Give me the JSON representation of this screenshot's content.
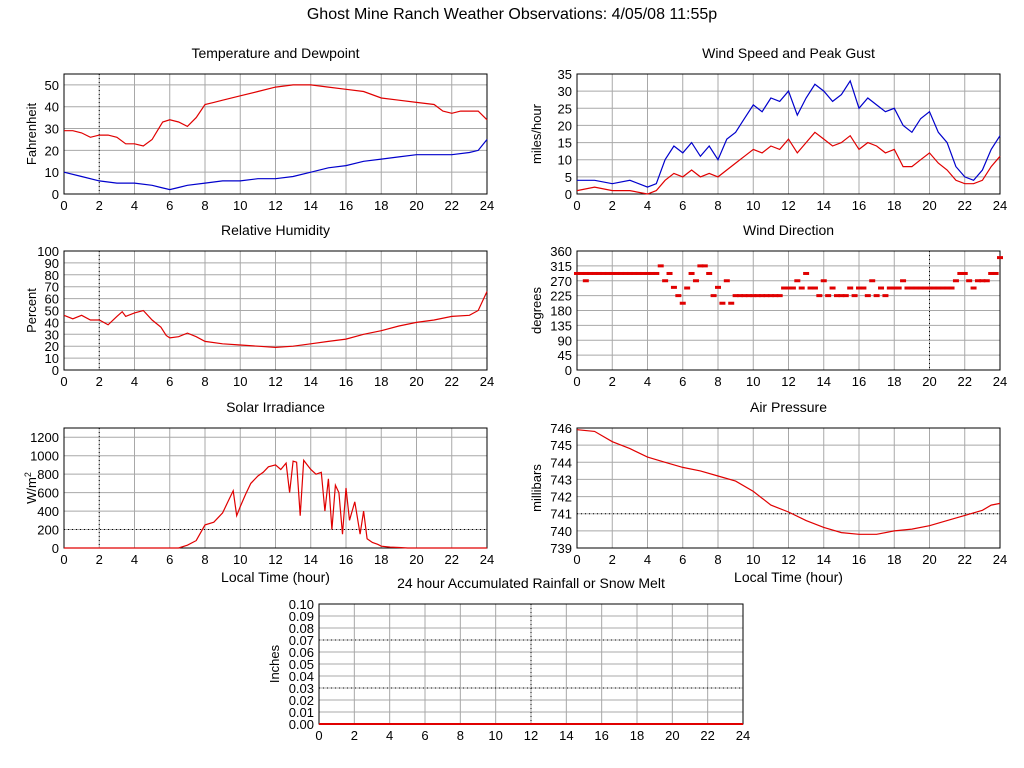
{
  "page": {
    "title": "Ghost Mine Ranch Weather Observations: 4/05/08 11:55p"
  },
  "colors": {
    "red": "#e00000",
    "blue": "#0000cc",
    "grid": "#a8a8a8",
    "axis": "#000000"
  },
  "chart_data": [
    {
      "id": "temp",
      "type": "line",
      "title": "Temperature and Dewpoint",
      "ylabel": "Fahrenheit",
      "xlabel": "",
      "xlim": [
        0,
        24
      ],
      "ylim": [
        0,
        55
      ],
      "xticks": [
        0,
        2,
        4,
        6,
        8,
        10,
        12,
        14,
        16,
        18,
        20,
        22,
        24
      ],
      "yticks": [
        0,
        10,
        20,
        30,
        40,
        50
      ],
      "grid": true,
      "series": [
        {
          "color": "#e00000",
          "x": [
            0,
            0.5,
            1,
            1.5,
            2,
            2.5,
            3,
            3.5,
            4,
            4.5,
            5,
            5.3,
            5.6,
            6,
            6.5,
            7,
            7.5,
            8,
            8.5,
            9,
            10,
            11,
            12,
            13,
            14,
            15,
            16,
            17,
            18,
            19,
            20,
            21,
            21.5,
            22,
            22.5,
            23,
            23.5,
            24
          ],
          "values": [
            29,
            29,
            28,
            26,
            27,
            27,
            26,
            23,
            23,
            22,
            25,
            29,
            33,
            34,
            33,
            31,
            35,
            41,
            42,
            43,
            45,
            47,
            49,
            50,
            50,
            49,
            48,
            47,
            44,
            43,
            42,
            41,
            38,
            37,
            38,
            38,
            38,
            34
          ]
        },
        {
          "color": "#0000cc",
          "x": [
            0,
            1,
            2,
            3,
            4,
            5,
            5.5,
            6,
            6.5,
            7,
            8,
            9,
            10,
            11,
            12,
            13,
            14,
            15,
            16,
            17,
            18,
            19,
            20,
            21,
            22,
            23,
            23.5,
            24
          ],
          "values": [
            10,
            8,
            6,
            5,
            5,
            4,
            3,
            2,
            3,
            4,
            5,
            6,
            6,
            7,
            7,
            8,
            10,
            12,
            13,
            15,
            16,
            17,
            18,
            18,
            18,
            19,
            20,
            25
          ]
        }
      ]
    },
    {
      "id": "wind",
      "type": "line",
      "title": "Wind Speed and Peak Gust",
      "ylabel": "miles/hour",
      "xlabel": "",
      "xlim": [
        0,
        24
      ],
      "ylim": [
        0,
        35
      ],
      "xticks": [
        0,
        2,
        4,
        6,
        8,
        10,
        12,
        14,
        16,
        18,
        20,
        22,
        24
      ],
      "yticks": [
        0,
        5,
        10,
        15,
        20,
        25,
        30,
        35
      ],
      "grid": true,
      "series": [
        {
          "color": "#0000cc",
          "x": [
            0,
            1,
            2,
            3,
            4,
            4.5,
            5,
            5.5,
            6,
            6.5,
            7,
            7.5,
            8,
            8.5,
            9,
            9.5,
            10,
            10.5,
            11,
            11.5,
            12,
            12.5,
            13,
            13.5,
            14,
            14.5,
            15,
            15.5,
            16,
            16.5,
            17,
            17.5,
            18,
            18.5,
            19,
            19.5,
            20,
            20.5,
            21,
            21.5,
            22,
            22.5,
            23,
            23.5,
            24
          ],
          "values": [
            4,
            4,
            3,
            4,
            2,
            3,
            10,
            14,
            12,
            15,
            11,
            14,
            10,
            16,
            18,
            22,
            26,
            24,
            28,
            27,
            30,
            23,
            28,
            32,
            30,
            27,
            29,
            33,
            25,
            28,
            26,
            24,
            25,
            20,
            18,
            22,
            24,
            18,
            15,
            8,
            5,
            4,
            7,
            13,
            17
          ]
        },
        {
          "color": "#e00000",
          "x": [
            0,
            1,
            2,
            3,
            4,
            4.5,
            5,
            5.5,
            6,
            6.5,
            7,
            7.5,
            8,
            8.5,
            9,
            9.5,
            10,
            10.5,
            11,
            11.5,
            12,
            12.5,
            13,
            13.5,
            14,
            14.5,
            15,
            15.5,
            16,
            16.5,
            17,
            17.5,
            18,
            18.5,
            19,
            19.5,
            20,
            20.5,
            21,
            21.5,
            22,
            22.5,
            23,
            23.5,
            24
          ],
          "values": [
            1,
            2,
            1,
            1,
            0,
            1,
            4,
            6,
            5,
            7,
            5,
            6,
            5,
            7,
            9,
            11,
            13,
            12,
            14,
            13,
            16,
            12,
            15,
            18,
            16,
            14,
            15,
            17,
            13,
            15,
            14,
            12,
            13,
            8,
            8,
            10,
            12,
            9,
            7,
            4,
            3,
            3,
            4,
            8,
            11
          ]
        }
      ]
    },
    {
      "id": "rh",
      "type": "line",
      "title": "Relative Humidity",
      "ylabel": "Percent",
      "xlabel": "",
      "xlim": [
        0,
        24
      ],
      "ylim": [
        0,
        100
      ],
      "xticks": [
        0,
        2,
        4,
        6,
        8,
        10,
        12,
        14,
        16,
        18,
        20,
        22,
        24
      ],
      "yticks": [
        0,
        10,
        20,
        30,
        40,
        50,
        60,
        70,
        80,
        90,
        100
      ],
      "grid": true,
      "series": [
        {
          "color": "#e00000",
          "x": [
            0,
            0.5,
            1,
            1.5,
            2,
            2.5,
            3,
            3.3,
            3.5,
            4,
            4.5,
            5,
            5.5,
            5.8,
            6,
            6.5,
            7,
            7.5,
            8,
            9,
            10,
            11,
            12,
            13,
            14,
            15,
            16,
            17,
            18,
            19,
            20,
            21,
            22,
            23,
            23.5,
            24
          ],
          "values": [
            46,
            43,
            46,
            42,
            42,
            38,
            45,
            49,
            45,
            48,
            50,
            42,
            36,
            29,
            27,
            28,
            31,
            28,
            24,
            22,
            21,
            20,
            19,
            20,
            22,
            24,
            26,
            30,
            33,
            37,
            40,
            42,
            45,
            46,
            50,
            66
          ]
        }
      ]
    },
    {
      "id": "wdir",
      "type": "scatter",
      "title": "Wind Direction",
      "ylabel": "degrees",
      "xlabel": "",
      "xlim": [
        0,
        24
      ],
      "ylim": [
        0,
        360
      ],
      "xticks": [
        0,
        2,
        4,
        6,
        8,
        10,
        12,
        14,
        16,
        18,
        20,
        22,
        24
      ],
      "yticks": [
        0,
        45,
        90,
        135,
        180,
        225,
        270,
        315,
        360
      ],
      "grid": true,
      "series": [
        {
          "color": "#e00000",
          "x": [
            0,
            0.25,
            0.5,
            0.75,
            1,
            1.25,
            1.5,
            1.75,
            2,
            2.25,
            2.5,
            2.75,
            3,
            3.25,
            3.5,
            3.75,
            4,
            4.25,
            4.5,
            0.5,
            4.75,
            5,
            5.25,
            5.5,
            5.75,
            6,
            6.25,
            6.5,
            6.75,
            7,
            7.25,
            7.5,
            7.75,
            8,
            8.25,
            8.5,
            8.75,
            9,
            9.25,
            9.5,
            9.75,
            10,
            10.25,
            10.5,
            10.75,
            11,
            11.25,
            11.5,
            11.75,
            12,
            12.25,
            12.5,
            12.75,
            13,
            13.25,
            13.5,
            13.75,
            14,
            14.25,
            14.5,
            14.75,
            15,
            15.25,
            15.5,
            15.75,
            16,
            16.25,
            16.5,
            16.75,
            17,
            17.25,
            17.5,
            17.75,
            18,
            18.25,
            18.5,
            18.75,
            19,
            19.25,
            19.5,
            19.75,
            20,
            20.25,
            20.5,
            20.75,
            21,
            21.25,
            21.5,
            21.75,
            22,
            22.25,
            22.5,
            22.75,
            23,
            23.25,
            23.5,
            23.75,
            24
          ],
          "values": [
            292,
            292,
            292,
            292,
            292,
            292,
            292,
            292,
            292,
            292,
            292,
            292,
            292,
            292,
            292,
            292,
            292,
            292,
            292,
            270,
            315,
            270,
            292,
            250,
            225,
            202,
            248,
            292,
            270,
            315,
            315,
            292,
            225,
            250,
            202,
            270,
            202,
            225,
            225,
            225,
            225,
            225,
            225,
            225,
            225,
            225,
            225,
            225,
            248,
            248,
            248,
            270,
            248,
            292,
            248,
            248,
            225,
            270,
            225,
            248,
            225,
            225,
            225,
            248,
            225,
            248,
            248,
            225,
            270,
            225,
            248,
            225,
            248,
            248,
            248,
            270,
            248,
            248,
            248,
            248,
            248,
            248,
            248,
            248,
            248,
            248,
            248,
            270,
            292,
            292,
            270,
            248,
            270,
            270,
            270,
            292,
            292,
            340
          ]
        }
      ]
    },
    {
      "id": "solar",
      "type": "line",
      "title": "Solar Irradiance",
      "ylabel": "W/m2",
      "xlabel": "Local Time (hour)",
      "xlim": [
        0,
        24
      ],
      "ylim": [
        0,
        1300
      ],
      "xticks": [
        0,
        2,
        4,
        6,
        8,
        10,
        12,
        14,
        16,
        18,
        20,
        22,
        24
      ],
      "yticks": [
        0,
        200,
        400,
        600,
        800,
        1000,
        1200
      ],
      "grid": true,
      "series": [
        {
          "color": "#e00000",
          "x": [
            0,
            6.5,
            7,
            7.5,
            8,
            8.5,
            9,
            9.3,
            9.6,
            9.8,
            10,
            10.3,
            10.6,
            11,
            11.3,
            11.6,
            12,
            12.3,
            12.6,
            12.8,
            13,
            13.2,
            13.4,
            13.6,
            13.8,
            14,
            14.3,
            14.6,
            14.8,
            15,
            15.2,
            15.4,
            15.6,
            15.8,
            16,
            16.2,
            16.5,
            16.8,
            17,
            17.2,
            17.5,
            17.8,
            18,
            18.5,
            19,
            19.5,
            20,
            24
          ],
          "values": [
            0,
            0,
            30,
            80,
            250,
            280,
            380,
            500,
            620,
            350,
            450,
            580,
            700,
            780,
            820,
            880,
            900,
            850,
            920,
            600,
            940,
            930,
            350,
            950,
            900,
            850,
            800,
            820,
            400,
            750,
            200,
            680,
            600,
            150,
            650,
            300,
            500,
            150,
            400,
            100,
            60,
            40,
            20,
            10,
            5,
            0,
            0,
            0
          ]
        }
      ]
    },
    {
      "id": "pressure",
      "type": "line",
      "title": "Air Pressure",
      "ylabel": "millibars",
      "xlabel": "Local Time (hour)",
      "xlim": [
        0,
        24
      ],
      "ylim": [
        739,
        746
      ],
      "xticks": [
        0,
        2,
        4,
        6,
        8,
        10,
        12,
        14,
        16,
        18,
        20,
        22,
        24
      ],
      "yticks": [
        739,
        740,
        741,
        742,
        743,
        744,
        745,
        746
      ],
      "grid": true,
      "series": [
        {
          "color": "#e00000",
          "x": [
            0,
            1,
            2,
            3,
            4,
            5,
            6,
            7,
            8,
            9,
            10,
            11,
            12,
            13,
            14,
            15,
            16,
            17,
            18,
            19,
            20,
            21,
            22,
            23,
            23.5,
            24
          ],
          "values": [
            745.9,
            745.8,
            745.2,
            744.8,
            744.3,
            744.0,
            743.7,
            743.5,
            743.2,
            742.9,
            742.3,
            741.5,
            741.1,
            740.6,
            740.2,
            739.9,
            739.8,
            739.8,
            740.0,
            740.1,
            740.3,
            740.6,
            740.9,
            741.2,
            741.5,
            741.6
          ]
        }
      ]
    },
    {
      "id": "rain",
      "type": "line",
      "title": "24 hour Accumulated Rainfall or Snow Melt",
      "ylabel": "Inches",
      "xlabel": "",
      "xlim": [
        0,
        24
      ],
      "ylim": [
        0,
        0.1
      ],
      "xticks": [
        0,
        2,
        4,
        6,
        8,
        10,
        12,
        14,
        16,
        18,
        20,
        22,
        24
      ],
      "yticks": [
        "0.00",
        "0.01",
        "0.02",
        "0.03",
        "0.04",
        "0.05",
        "0.06",
        "0.07",
        "0.08",
        "0.09",
        "0.10"
      ],
      "grid": true,
      "series": [
        {
          "color": "#e00000",
          "x": [
            0,
            24
          ],
          "values": [
            0,
            0
          ]
        }
      ]
    }
  ]
}
